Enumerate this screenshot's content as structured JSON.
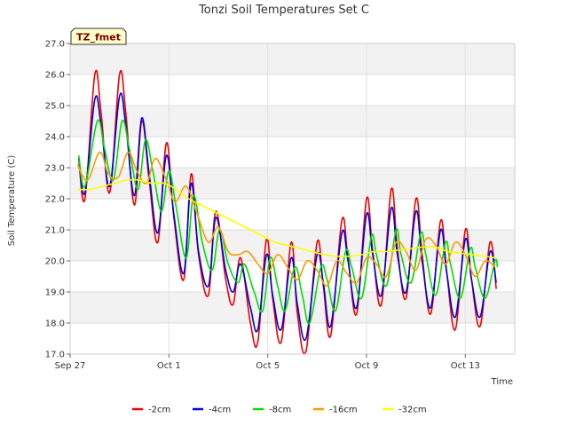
{
  "chart_data": {
    "type": "line",
    "title": "Tonzi Soil Temperatures Set C",
    "badge": "TZ_fmet",
    "xlabel": "Time",
    "ylabel": "Soil Temperature (C)",
    "xlim": [
      0,
      18
    ],
    "ylim": [
      17.0,
      27.0
    ],
    "x_ticks": [
      {
        "value": 0,
        "label": "Sep 27"
      },
      {
        "value": 4,
        "label": "Oct 1"
      },
      {
        "value": 8,
        "label": "Oct 5"
      },
      {
        "value": 12,
        "label": "Oct 9"
      },
      {
        "value": 16,
        "label": "Oct 13"
      }
    ],
    "y_ticks": [
      {
        "value": 17.0,
        "label": "17.0"
      },
      {
        "value": 18.0,
        "label": "18.0"
      },
      {
        "value": 19.0,
        "label": "19.0"
      },
      {
        "value": 20.0,
        "label": "20.0"
      },
      {
        "value": 21.0,
        "label": "21.0"
      },
      {
        "value": 22.0,
        "label": "22.0"
      },
      {
        "value": 23.0,
        "label": "23.0"
      },
      {
        "value": 24.0,
        "label": "24.0"
      },
      {
        "value": 25.0,
        "label": "25.0"
      },
      {
        "value": 26.0,
        "label": "26.0"
      },
      {
        "value": 27.0,
        "label": "27.0"
      }
    ],
    "grid": true,
    "legend_position": "bottom",
    "series": [
      {
        "name": "-2cm",
        "color": "#ee0000",
        "x": [
          0.35,
          0.6,
          1.0,
          1.25,
          1.6,
          2.0,
          2.25,
          2.6,
          2.9,
          3.2,
          3.55,
          3.9,
          4.2,
          4.6,
          4.9,
          5.2,
          5.6,
          5.9,
          6.3,
          6.6,
          6.9,
          7.3,
          7.6,
          7.95,
          8.2,
          8.55,
          8.95,
          9.2,
          9.55,
          10.0,
          10.25,
          10.55,
          11.0,
          11.25,
          11.6,
          12.0,
          12.25,
          12.6,
          13.0,
          13.25,
          13.6,
          14.0,
          14.25,
          14.6,
          15.0,
          15.25,
          15.6,
          16.0,
          16.25,
          16.6,
          17.0,
          17.25
        ],
        "y": [
          23.3,
          22.0,
          26.0,
          24.8,
          22.2,
          26.0,
          24.8,
          21.8,
          24.5,
          22.6,
          20.6,
          23.8,
          21.4,
          19.4,
          22.8,
          20.2,
          18.9,
          21.6,
          19.4,
          18.6,
          20.1,
          18.0,
          17.4,
          20.7,
          18.8,
          17.4,
          20.6,
          18.3,
          17.1,
          20.6,
          19.2,
          17.6,
          21.3,
          20.1,
          18.3,
          22.0,
          20.3,
          18.6,
          22.3,
          20.4,
          18.8,
          22.0,
          20.2,
          18.3,
          21.3,
          19.6,
          17.8,
          21.0,
          19.4,
          17.9,
          20.6,
          19.1
        ]
      },
      {
        "name": "-4cm",
        "color": "#0000dd",
        "x": [
          0.35,
          0.6,
          1.0,
          1.25,
          1.6,
          2.0,
          2.25,
          2.6,
          2.9,
          3.2,
          3.55,
          3.9,
          4.2,
          4.6,
          4.9,
          5.2,
          5.6,
          5.9,
          6.3,
          6.6,
          6.9,
          7.3,
          7.6,
          7.95,
          8.2,
          8.55,
          8.95,
          9.2,
          9.55,
          10.0,
          10.25,
          10.55,
          11.0,
          11.25,
          11.6,
          12.0,
          12.25,
          12.6,
          13.0,
          13.25,
          13.6,
          14.0,
          14.25,
          14.6,
          15.0,
          15.25,
          15.6,
          16.0,
          16.25,
          16.6,
          17.0,
          17.25
        ],
        "y": [
          23.3,
          22.2,
          25.2,
          24.4,
          22.4,
          25.3,
          24.4,
          22.1,
          24.6,
          22.8,
          20.9,
          23.4,
          21.5,
          19.6,
          22.5,
          20.3,
          19.2,
          21.4,
          19.7,
          19.0,
          19.9,
          18.5,
          17.8,
          20.2,
          18.9,
          17.8,
          20.1,
          18.6,
          17.5,
          20.2,
          19.3,
          17.9,
          20.9,
          20.0,
          18.5,
          21.5,
          20.2,
          18.9,
          21.7,
          20.2,
          19.0,
          21.6,
          20.0,
          18.5,
          21.0,
          19.6,
          18.2,
          20.7,
          19.4,
          18.2,
          20.3,
          19.3
        ]
      },
      {
        "name": "-8cm",
        "color": "#00dd00",
        "x": [
          0.35,
          0.6,
          1.1,
          1.4,
          1.75,
          2.1,
          2.4,
          2.75,
          3.05,
          3.35,
          3.7,
          4.0,
          4.3,
          4.7,
          5.0,
          5.35,
          5.75,
          6.05,
          6.4,
          6.8,
          7.05,
          7.45,
          7.8,
          8.1,
          8.4,
          8.7,
          9.1,
          9.4,
          9.7,
          10.15,
          10.4,
          10.75,
          11.15,
          11.4,
          11.8,
          12.2,
          12.4,
          12.8,
          13.2,
          13.4,
          13.8,
          14.2,
          14.4,
          14.8,
          15.2,
          15.4,
          15.8,
          16.2,
          16.4,
          16.8,
          17.2,
          17.3
        ],
        "y": [
          23.4,
          22.4,
          24.5,
          23.6,
          22.6,
          24.5,
          23.6,
          22.3,
          23.9,
          22.9,
          21.6,
          22.9,
          21.7,
          20.1,
          22.1,
          20.6,
          19.7,
          21.0,
          19.9,
          19.3,
          19.9,
          19.0,
          18.4,
          20.1,
          19.2,
          18.4,
          19.8,
          18.9,
          18.0,
          19.8,
          19.4,
          18.4,
          20.3,
          19.8,
          18.8,
          20.8,
          20.2,
          19.2,
          21.0,
          20.2,
          19.3,
          20.9,
          20.2,
          18.9,
          20.6,
          19.9,
          18.8,
          20.4,
          19.8,
          18.8,
          20.0,
          19.8
        ]
      },
      {
        "name": "-16cm",
        "color": "#ff9900",
        "x": [
          0.3,
          0.7,
          1.2,
          1.55,
          1.95,
          2.35,
          2.7,
          3.1,
          3.45,
          3.9,
          4.25,
          4.7,
          5.15,
          5.6,
          6.0,
          6.4,
          6.8,
          7.2,
          7.6,
          8.0,
          8.4,
          8.8,
          9.2,
          9.6,
          10.0,
          10.4,
          10.8,
          11.2,
          11.6,
          12.0,
          12.4,
          12.8,
          13.2,
          13.6,
          14.0,
          14.4,
          14.8,
          15.2,
          15.6,
          16.0,
          16.4,
          16.8,
          17.2
        ],
        "y": [
          23.1,
          22.6,
          23.5,
          22.8,
          22.7,
          23.5,
          22.9,
          22.5,
          23.3,
          22.6,
          21.9,
          22.4,
          21.5,
          20.6,
          21.1,
          20.3,
          20.2,
          20.3,
          19.9,
          19.6,
          20.2,
          19.8,
          19.4,
          20.0,
          19.7,
          19.2,
          20.0,
          19.6,
          19.3,
          20.1,
          19.9,
          19.5,
          20.6,
          20.3,
          19.7,
          20.7,
          20.5,
          19.9,
          20.6,
          20.2,
          19.5,
          20.0,
          19.8
        ]
      },
      {
        "name": "-32cm",
        "color": "#ffff00",
        "x": [
          0.3,
          0.8,
          1.3,
          1.8,
          2.3,
          2.8,
          3.3,
          3.8,
          4.3,
          4.8,
          5.3,
          5.8,
          6.3,
          6.8,
          7.3,
          7.8,
          8.3,
          8.8,
          9.3,
          9.8,
          10.3,
          10.8,
          11.3,
          11.8,
          12.3,
          12.8,
          13.3,
          13.8,
          14.3,
          14.8,
          15.3,
          15.8,
          16.3,
          16.8,
          17.2
        ],
        "y": [
          22.3,
          22.3,
          22.4,
          22.5,
          22.6,
          22.6,
          22.5,
          22.5,
          22.3,
          22.0,
          21.8,
          21.6,
          21.4,
          21.2,
          21.0,
          20.8,
          20.6,
          20.5,
          20.4,
          20.3,
          20.2,
          20.15,
          20.15,
          20.2,
          20.3,
          20.3,
          20.35,
          20.4,
          20.45,
          20.45,
          20.3,
          20.25,
          20.2,
          20.15,
          20.1
        ]
      }
    ]
  }
}
